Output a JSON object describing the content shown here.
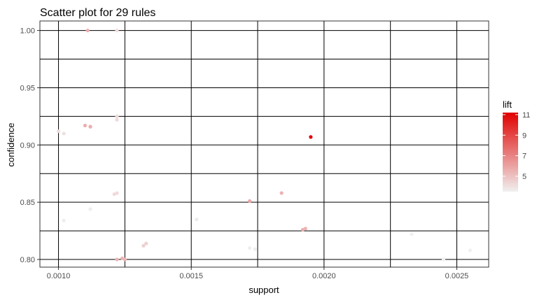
{
  "chart_data": {
    "type": "scatter",
    "title": "Scatter plot for 29 rules",
    "xlabel": "support",
    "ylabel": "confidence",
    "xlim": [
      0.00093,
      0.00262
    ],
    "ylim": [
      0.7933,
      1.0083
    ],
    "x_ticks": [
      0.001,
      0.0015,
      0.002,
      0.0025
    ],
    "x_tick_labels": [
      "0.0010",
      "0.0015",
      "0.0020",
      "0.0025"
    ],
    "y_ticks": [
      0.8,
      0.85,
      0.9,
      0.95,
      1.0
    ],
    "y_tick_labels": [
      "0.80",
      "0.85",
      "0.90",
      "0.95",
      "1.00"
    ],
    "grid": true,
    "legend": {
      "title": "lift",
      "placement": "right",
      "ticks": [
        5,
        7,
        9,
        11
      ],
      "tick_labels": [
        "5",
        "7",
        "9",
        "11"
      ],
      "range": [
        3.5,
        11.2
      ],
      "color_low": "#f0f0f0",
      "color_high": "#e00000"
    },
    "points": [
      {
        "support": 0.00111,
        "confidence": 1.0,
        "lift": 5.6
      },
      {
        "support": 0.00122,
        "confidence": 1.0,
        "lift": 4.0
      },
      {
        "support": 0.00122,
        "confidence": 0.925,
        "lift": 4.2
      },
      {
        "support": 0.00122,
        "confidence": 0.922,
        "lift": 4.2
      },
      {
        "support": 0.001,
        "confidence": 0.912,
        "lift": 4.2
      },
      {
        "support": 0.00102,
        "confidence": 0.91,
        "lift": 4.0
      },
      {
        "support": 0.0011,
        "confidence": 0.917,
        "lift": 5.6
      },
      {
        "support": 0.00112,
        "confidence": 0.916,
        "lift": 5.6
      },
      {
        "support": 0.00195,
        "confidence": 0.907,
        "lift": 11.2
      },
      {
        "support": 0.00121,
        "confidence": 0.857,
        "lift": 4.2
      },
      {
        "support": 0.00122,
        "confidence": 0.858,
        "lift": 4.2
      },
      {
        "support": 0.00112,
        "confidence": 0.844,
        "lift": 3.6
      },
      {
        "support": 0.00102,
        "confidence": 0.834,
        "lift": 3.6
      },
      {
        "support": 0.00152,
        "confidence": 0.835,
        "lift": 3.7
      },
      {
        "support": 0.00172,
        "confidence": 0.851,
        "lift": 5.8
      },
      {
        "support": 0.00184,
        "confidence": 0.858,
        "lift": 5.5
      },
      {
        "support": 0.00192,
        "confidence": 0.826,
        "lift": 5.6
      },
      {
        "support": 0.00193,
        "confidence": 0.827,
        "lift": 5.4
      },
      {
        "support": 0.00172,
        "confidence": 0.81,
        "lift": 3.6
      },
      {
        "support": 0.00174,
        "confidence": 0.809,
        "lift": 3.6
      },
      {
        "support": 0.00132,
        "confidence": 0.812,
        "lift": 4.5
      },
      {
        "support": 0.00133,
        "confidence": 0.814,
        "lift": 4.5
      },
      {
        "support": 0.00122,
        "confidence": 0.8,
        "lift": 5.4
      },
      {
        "support": 0.00124,
        "confidence": 0.801,
        "lift": 5.4
      },
      {
        "support": 0.00125,
        "confidence": 0.8,
        "lift": 5.4
      },
      {
        "support": 0.00233,
        "confidence": 0.822,
        "lift": 3.5
      },
      {
        "support": 0.00245,
        "confidence": 0.8,
        "lift": 3.5
      },
      {
        "support": 0.00255,
        "confidence": 0.808,
        "lift": 3.5
      },
      {
        "support": 0.00112,
        "confidence": 0.916,
        "lift": 5.6
      }
    ]
  }
}
